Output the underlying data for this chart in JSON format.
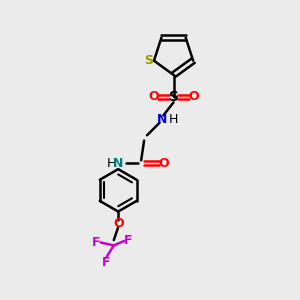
{
  "background_color": "#ebebeb",
  "bond_color": "#000000",
  "S_thiophene_color": "#999900",
  "O_color": "#ff0000",
  "N_blue_color": "#0000cc",
  "N_teal_color": "#008080",
  "F_color": "#cc00cc",
  "figsize": [
    3.0,
    3.0
  ],
  "dpi": 100,
  "xlim": [
    0,
    10
  ],
  "ylim": [
    0,
    10
  ]
}
